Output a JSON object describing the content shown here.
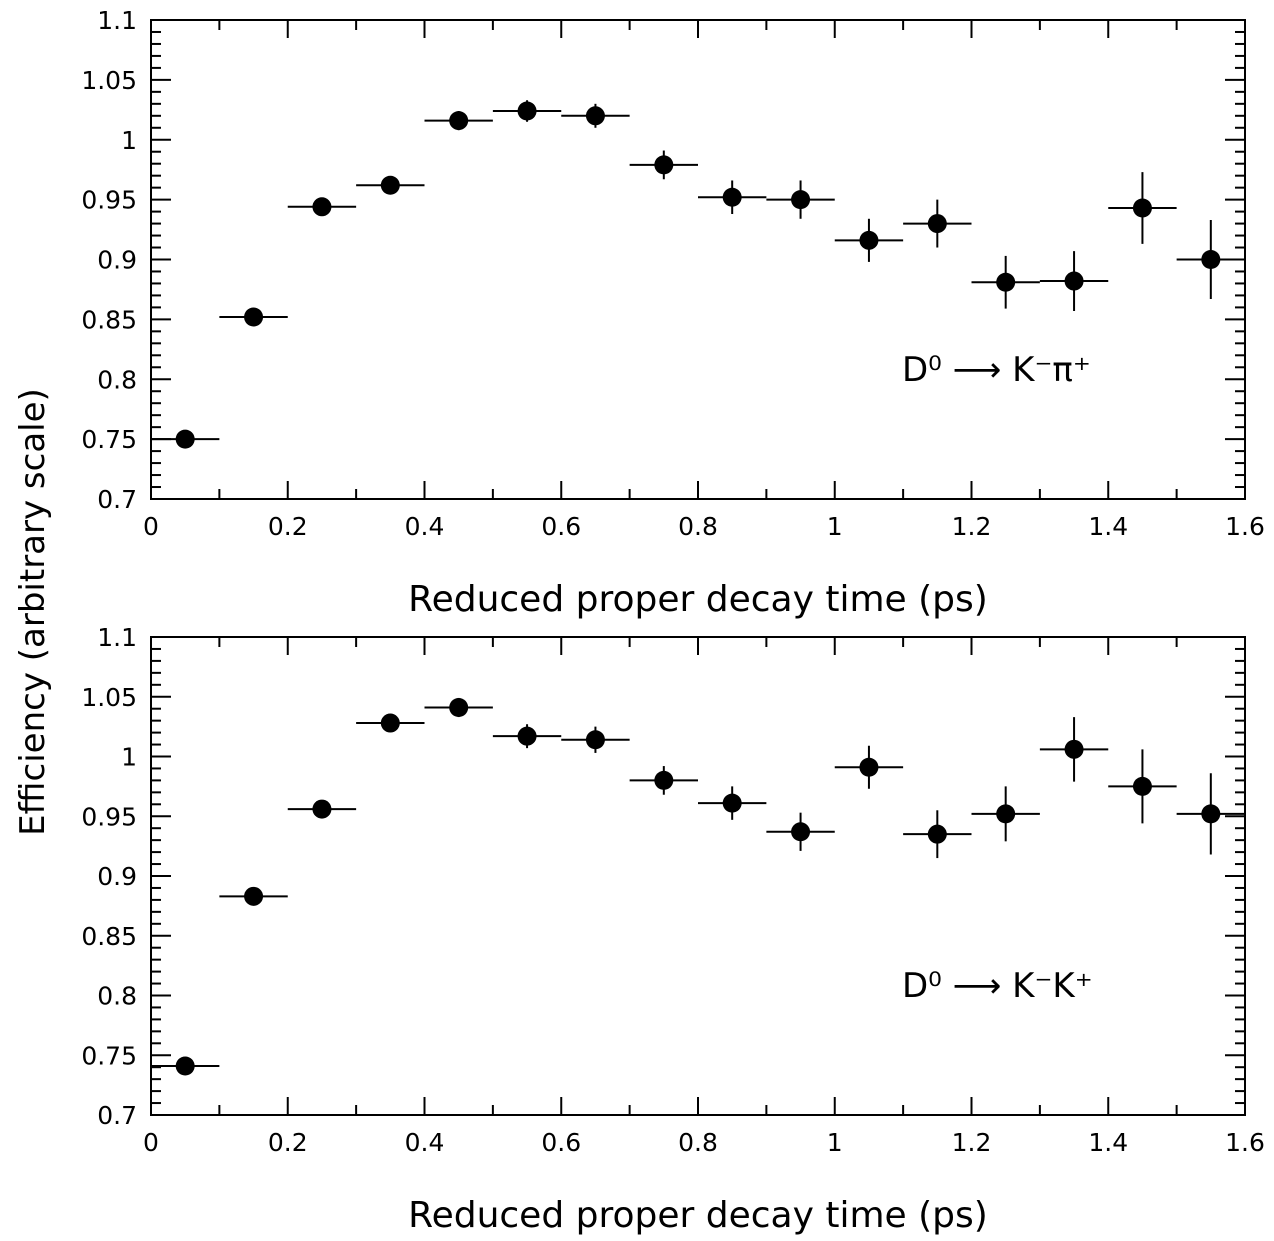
{
  "figure": {
    "ylabel": "Efficiency (arbitrary scale)"
  },
  "chart_data": [
    {
      "type": "scatter",
      "xlabel": "Reduced proper decay time (ps)",
      "annotation": "D⁰ ⟶ K⁻π⁺",
      "xlim": [
        0,
        1.6
      ],
      "ylim": [
        0.7,
        1.1
      ],
      "xticks": [
        "0",
        "0.2",
        "0.4",
        "0.6",
        "0.8",
        "1",
        "1.2",
        "1.4",
        "1.6"
      ],
      "yticks": [
        "0.7",
        "0.75",
        "0.8",
        "0.85",
        "0.9",
        "0.95",
        "1",
        "1.05",
        "1.1"
      ],
      "x": [
        0.05,
        0.15,
        0.25,
        0.35,
        0.45,
        0.55,
        0.65,
        0.75,
        0.85,
        0.95,
        1.05,
        1.15,
        1.25,
        1.35,
        1.45,
        1.55
      ],
      "x_err": [
        0.05,
        0.05,
        0.05,
        0.05,
        0.05,
        0.05,
        0.05,
        0.05,
        0.05,
        0.05,
        0.05,
        0.05,
        0.05,
        0.05,
        0.05,
        0.05
      ],
      "y": [
        0.75,
        0.852,
        0.944,
        0.962,
        1.016,
        1.024,
        1.02,
        0.979,
        0.952,
        0.95,
        0.916,
        0.93,
        0.881,
        0.882,
        0.943,
        0.9
      ],
      "y_err": [
        0.002,
        0.003,
        0.003,
        0.004,
        0.008,
        0.009,
        0.01,
        0.012,
        0.014,
        0.016,
        0.018,
        0.02,
        0.022,
        0.025,
        0.03,
        0.033
      ]
    },
    {
      "type": "scatter",
      "xlabel": "Reduced proper decay time (ps)",
      "annotation": "D⁰ ⟶ K⁻K⁺",
      "xlim": [
        0,
        1.6
      ],
      "ylim": [
        0.7,
        1.1
      ],
      "xticks": [
        "0",
        "0.2",
        "0.4",
        "0.6",
        "0.8",
        "1",
        "1.2",
        "1.4",
        "1.6"
      ],
      "yticks": [
        "0.7",
        "0.75",
        "0.8",
        "0.85",
        "0.9",
        "0.95",
        "1",
        "1.05",
        "1.1"
      ],
      "x": [
        0.05,
        0.15,
        0.25,
        0.35,
        0.45,
        0.55,
        0.65,
        0.75,
        0.85,
        0.95,
        1.05,
        1.15,
        1.25,
        1.35,
        1.45,
        1.55
      ],
      "x_err": [
        0.05,
        0.05,
        0.05,
        0.05,
        0.05,
        0.05,
        0.05,
        0.05,
        0.05,
        0.05,
        0.05,
        0.05,
        0.05,
        0.05,
        0.05,
        0.05
      ],
      "y": [
        0.741,
        0.883,
        0.956,
        1.028,
        1.041,
        1.017,
        1.014,
        0.98,
        0.961,
        0.937,
        0.991,
        0.935,
        0.952,
        1.006,
        0.975,
        0.952
      ],
      "y_err": [
        0.002,
        0.003,
        0.004,
        0.006,
        0.008,
        0.01,
        0.011,
        0.012,
        0.014,
        0.016,
        0.018,
        0.02,
        0.023,
        0.027,
        0.031,
        0.034
      ]
    }
  ]
}
